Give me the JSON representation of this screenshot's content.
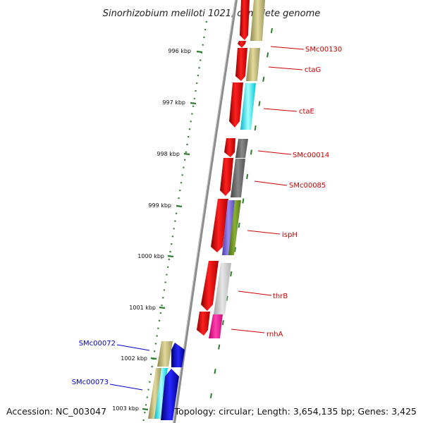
{
  "title": "Sinorhizobium meliloti 1021, complete genome",
  "footer": {
    "accession": "Accession: NC_003047",
    "topology": "Topology: circular; Length: 3,654,135 bp; Genes: 3,425"
  },
  "colors": {
    "backbone": "#909090",
    "tick": "#2e7d2e",
    "forward_label": "#cc0000",
    "reverse_label": "#0000cc"
  },
  "scale": {
    "unit": "kbp",
    "labeled_ticks": [
      "996 kbp",
      "997 kbp",
      "998 kbp",
      "999 kbp",
      "1000 kbp",
      "1001 kbp",
      "1002 kbp",
      "1003 kbp"
    ]
  },
  "forward_labels": [
    "SMc00130",
    "ctaG",
    "ctaE",
    "SMc00014",
    "SMc00085",
    "ispH",
    "thrB",
    "rnhA"
  ],
  "reverse_labels": [
    "SMc00072",
    "SMc00073"
  ]
}
